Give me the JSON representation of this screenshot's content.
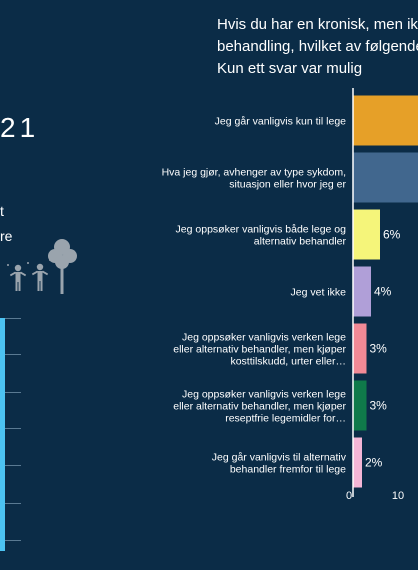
{
  "question_lines": [
    "Hvis du har en kronisk, men ikk",
    "behandling, hvilket av følgende",
    "Kun ett svar var mulig"
  ],
  "left_panel": {
    "year_fragment": "21",
    "text_fragments": [
      "t",
      "re"
    ]
  },
  "chart_data": {
    "type": "bar",
    "orientation": "horizontal",
    "categories": [
      [
        "Jeg går vanligvis kun til lege"
      ],
      [
        "Hva jeg gjør, avhenger av type sykdom,",
        "situasjon eller hvor jeg er"
      ],
      [
        "Jeg oppsøker vanligvis både lege og",
        "alternativ behandler"
      ],
      [
        "Jeg vet ikke"
      ],
      [
        "Jeg oppsøker vanligvis verken lege",
        "eller alternativ behandler, men kjøper",
        "kosttilskudd, urter eller…"
      ],
      [
        "Jeg oppsøker vanligvis verken lege",
        "eller alternativ behandler, men kjøper",
        "reseptfrie legemidler for…"
      ],
      [
        "Jeg går vanligvis til alternativ",
        "behandler fremfor til lege"
      ]
    ],
    "values": [
      null,
      null,
      6,
      4,
      3,
      3,
      2
    ],
    "value_labels": [
      "",
      "",
      "6%",
      "4%",
      "3%",
      "3%",
      "2%"
    ],
    "colors": [
      "#e6a028",
      "#41678e",
      "#f5f57a",
      "#b09fd8",
      "#f28a96",
      "#0f7a4a",
      "#f4b6d6"
    ],
    "x_ticks": [
      "0",
      "10"
    ],
    "xlim": [
      0,
      10
    ]
  }
}
